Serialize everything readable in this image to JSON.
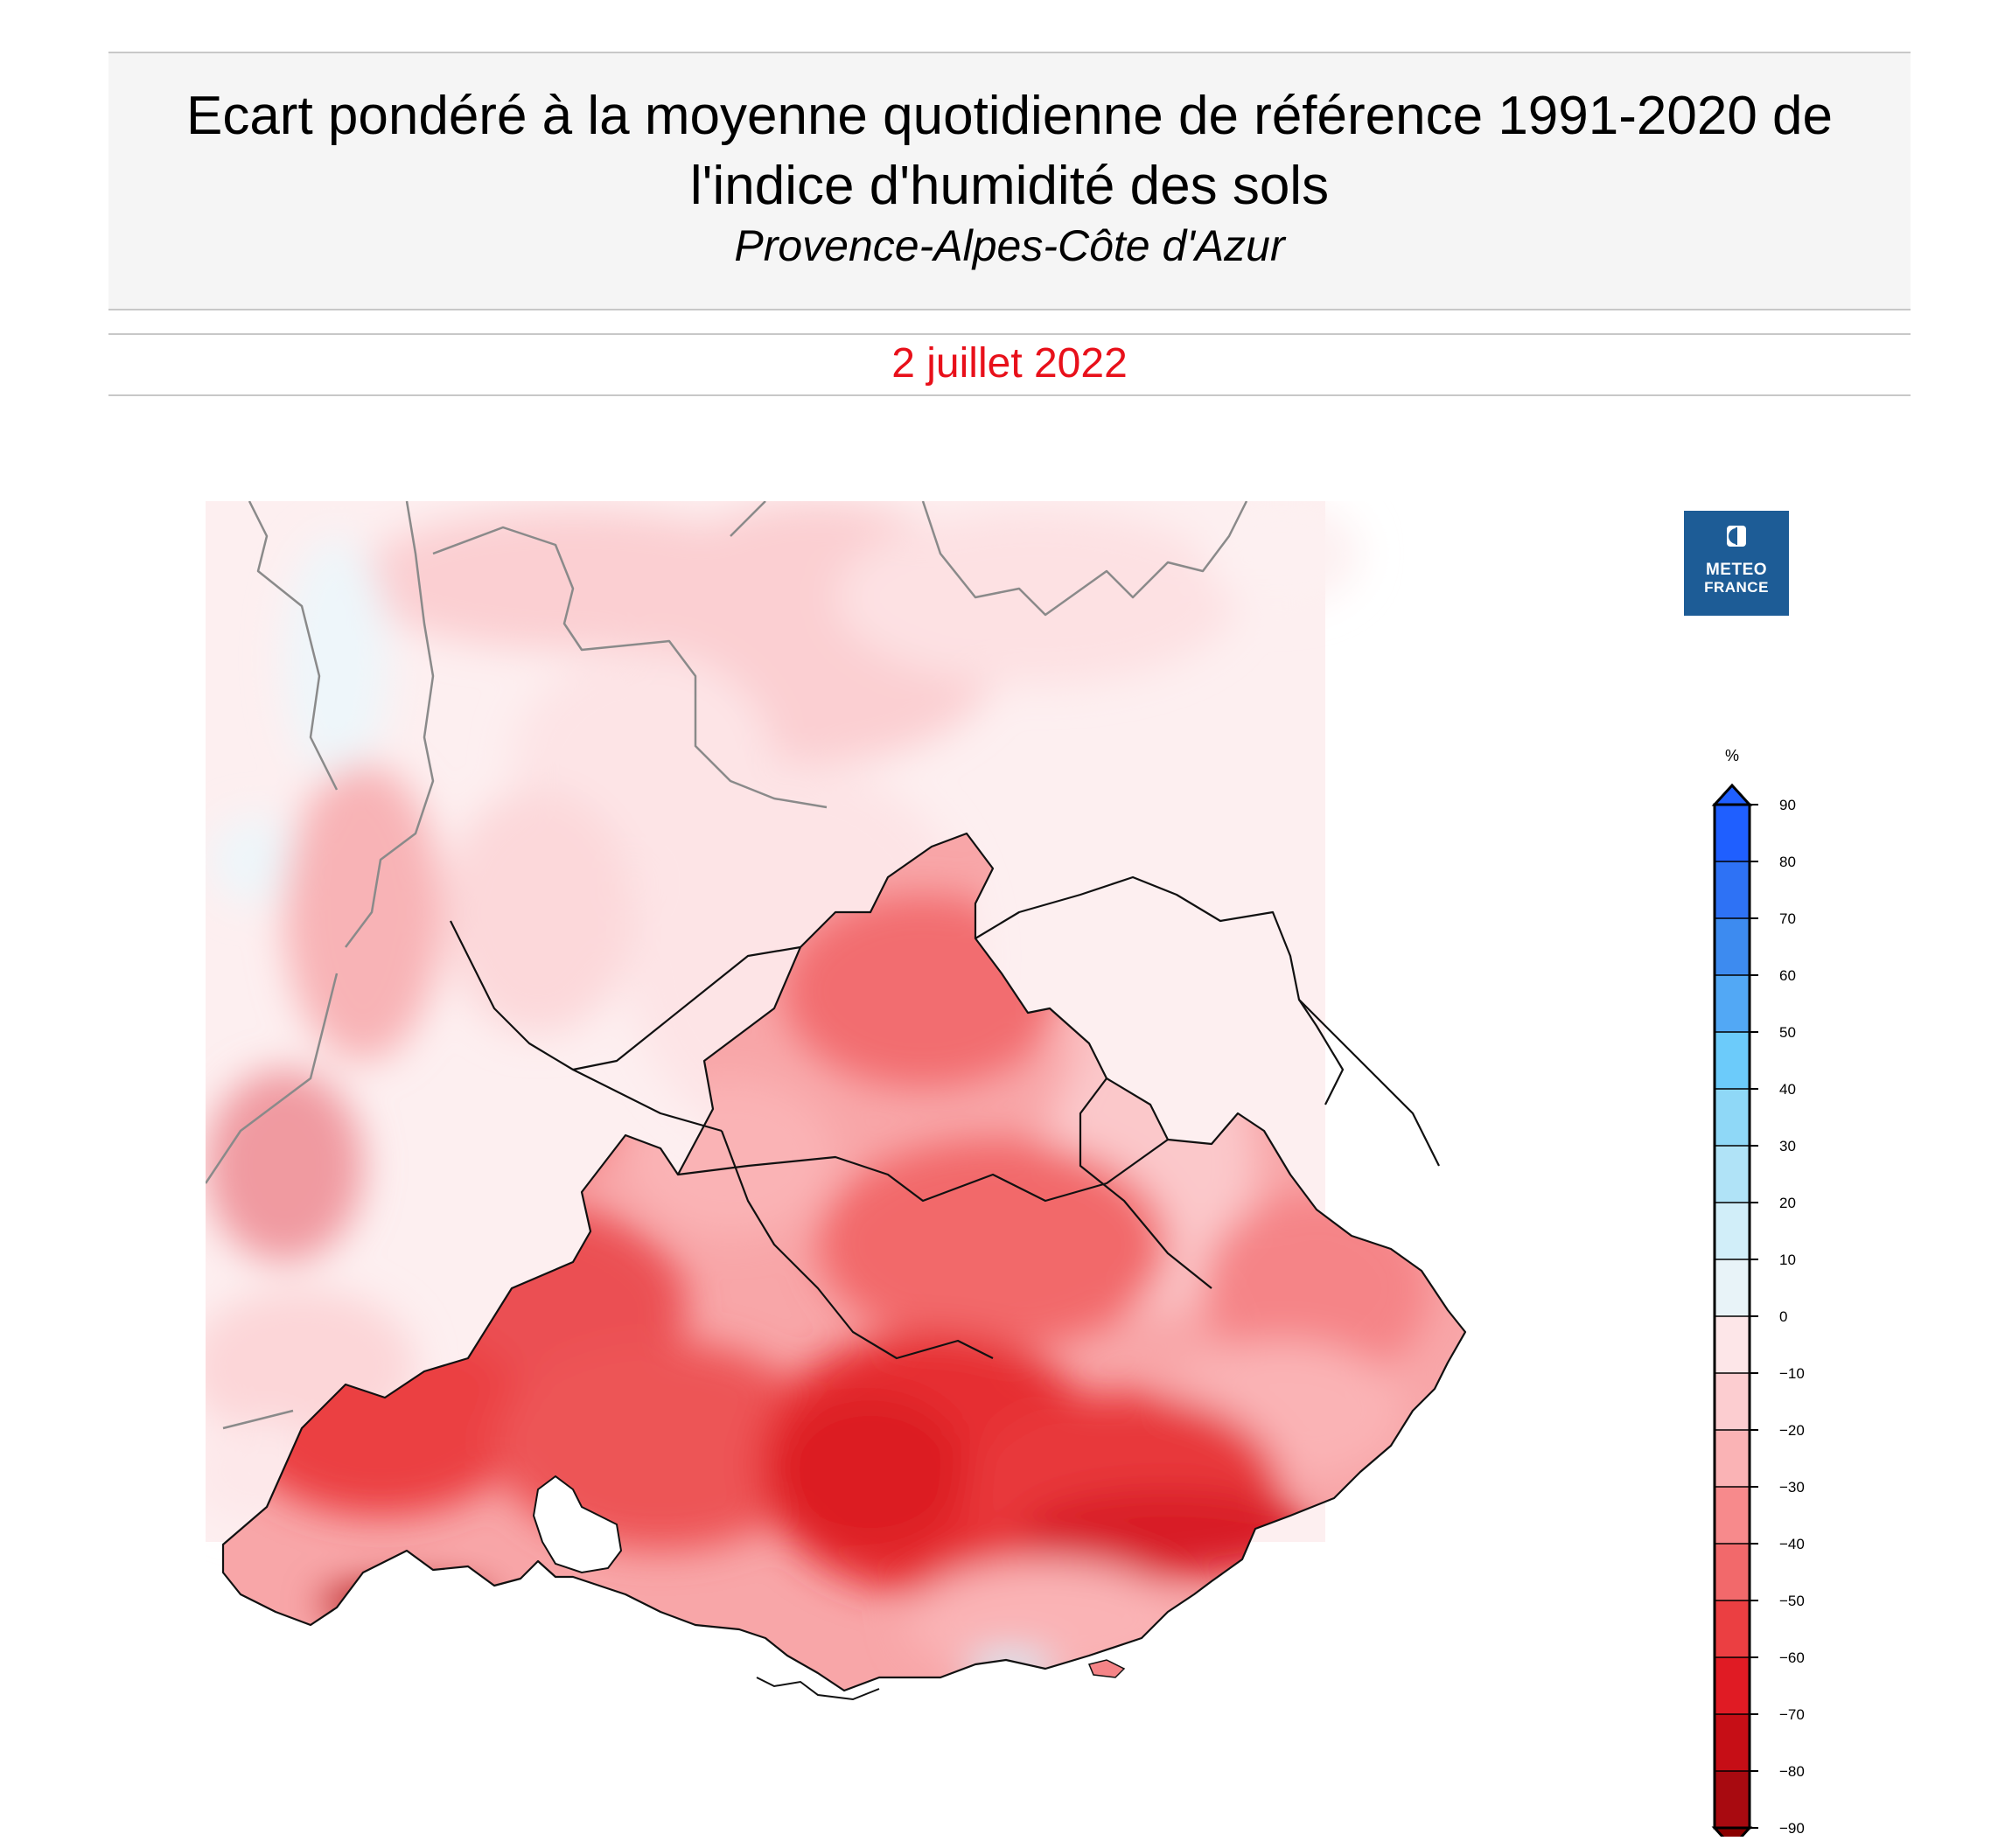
{
  "header": {
    "title": "Ecart pondéré à la moyenne quotidienne de référence 1991-2020 de l'indice d'humidité des sols",
    "region": "Provence-Alpes-Côte d'Azur",
    "date": "2 juillet 2022"
  },
  "logo": {
    "line1": "METEO",
    "line2": "FRANCE",
    "background": "#1d5c96"
  },
  "map": {
    "variable": "Ecart pondéré de l'indice d'humidité des sols (%)",
    "background": "#fff0f0"
  },
  "legend": {
    "unit": "%",
    "ticks": [
      "90",
      "80",
      "70",
      "60",
      "50",
      "40",
      "30",
      "20",
      "10",
      "0",
      "−10",
      "−20",
      "−30",
      "−40",
      "−50",
      "−60",
      "−70",
      "−80",
      "−90"
    ],
    "bins": [
      {
        "from": 80,
        "to": 90,
        "color": "#1f5fff"
      },
      {
        "from": 70,
        "to": 80,
        "color": "#2e72f5"
      },
      {
        "from": 60,
        "to": 70,
        "color": "#3d8bf0"
      },
      {
        "from": 50,
        "to": 60,
        "color": "#52a8f5"
      },
      {
        "from": 40,
        "to": 50,
        "color": "#6ccbfa"
      },
      {
        "from": 30,
        "to": 40,
        "color": "#8fd8f7"
      },
      {
        "from": 20,
        "to": 30,
        "color": "#b0e3f7"
      },
      {
        "from": 10,
        "to": 20,
        "color": "#d1eef9"
      },
      {
        "from": 0,
        "to": 10,
        "color": "#e8f3f8"
      },
      {
        "from": -10,
        "to": 0,
        "color": "#fde6e8"
      },
      {
        "from": -20,
        "to": -10,
        "color": "#fccdd0"
      },
      {
        "from": -30,
        "to": -20,
        "color": "#fab3b5"
      },
      {
        "from": -40,
        "to": -30,
        "color": "#f78a8c"
      },
      {
        "from": -50,
        "to": -40,
        "color": "#f2696b"
      },
      {
        "from": -60,
        "to": -50,
        "color": "#eb3f42"
      },
      {
        "from": -70,
        "to": -60,
        "color": "#e01b24"
      },
      {
        "from": -80,
        "to": -70,
        "color": "#c60e16"
      },
      {
        "from": -90,
        "to": -80,
        "color": "#a80a10"
      }
    ],
    "over_color": "#1f5fff",
    "under_color": "#8b0000"
  }
}
